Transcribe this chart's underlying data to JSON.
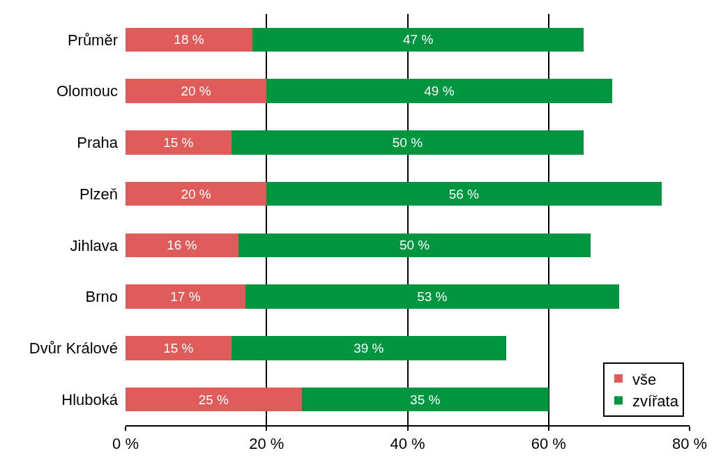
{
  "chart_data": {
    "type": "bar",
    "orientation": "horizontal",
    "stacked": true,
    "categories": [
      "Průměr",
      "Olomouc",
      "Praha",
      "Plzeň",
      "Jihlava",
      "Brno",
      "Dvůr Králové",
      "Hluboká"
    ],
    "series": [
      {
        "name": "vše",
        "color": "#e05c5a",
        "values": [
          18,
          20,
          15,
          20,
          16,
          17,
          15,
          25
        ],
        "value_labels": [
          "18 %",
          "20 %",
          "15 %",
          "20 %",
          "16 %",
          "17 %",
          "15 %",
          "25 %"
        ]
      },
      {
        "name": "zvířata",
        "color": "#00953f",
        "values": [
          47,
          49,
          50,
          56,
          50,
          53,
          39,
          35
        ],
        "value_labels": [
          "47 %",
          "49 %",
          "50 %",
          "56 %",
          "50 %",
          "53 %",
          "39 %",
          "35 %"
        ]
      }
    ],
    "xlim": [
      0,
      80
    ],
    "xticks": [
      {
        "value": 0,
        "label": "0 %"
      },
      {
        "value": 20,
        "label": "20 %"
      },
      {
        "value": 40,
        "label": "40 %"
      },
      {
        "value": 60,
        "label": "60 %"
      },
      {
        "value": 80,
        "label": "80 %"
      }
    ],
    "grid": "x",
    "legend": "bottom right"
  }
}
